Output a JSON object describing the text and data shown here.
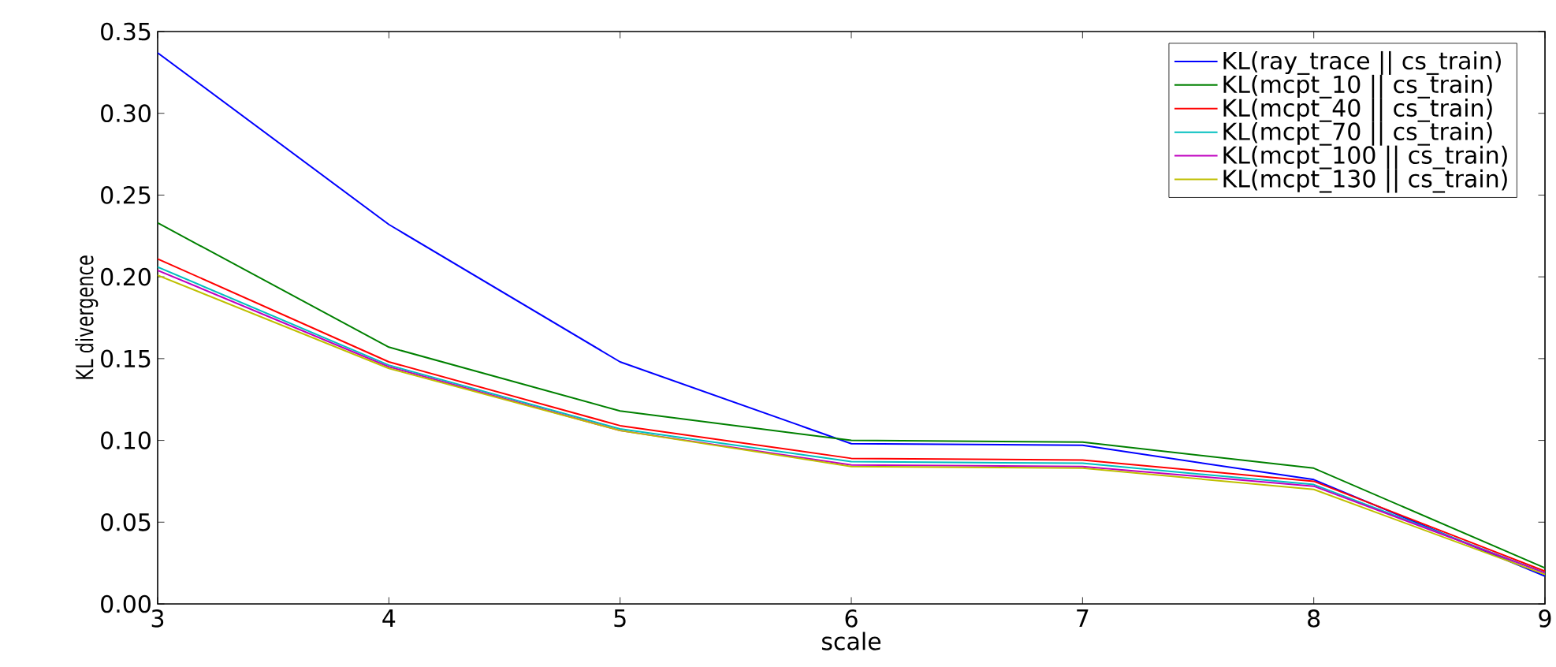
{
  "chart_data": {
    "type": "line",
    "xlabel": "scale",
    "ylabel": "KL divergence",
    "x": [
      3,
      4,
      5,
      6,
      7,
      8,
      9
    ],
    "xlim": [
      3,
      9
    ],
    "xticks": [
      3,
      4,
      5,
      6,
      7,
      8,
      9
    ],
    "ylim": [
      0,
      0.35
    ],
    "yticks": [
      {
        "value": 0,
        "label": "0.00"
      },
      {
        "value": 0.05,
        "label": "0.05"
      },
      {
        "value": 0.1,
        "label": "0.10"
      },
      {
        "value": 0.15,
        "label": "0.15"
      },
      {
        "value": 0.2,
        "label": "0.20"
      },
      {
        "value": 0.25,
        "label": "0.25"
      },
      {
        "value": 0.3,
        "label": "0.30"
      },
      {
        "value": 0.35,
        "label": "0.35"
      }
    ],
    "grid": false,
    "legend": "top right",
    "marker": "none",
    "line_style": "solid",
    "series": [
      {
        "name": "KL(ray_trace || cs_train)",
        "color": "#0000ff",
        "values": [
          0.337,
          0.232,
          0.148,
          0.098,
          0.097,
          0.076,
          0.017
        ]
      },
      {
        "name": "KL(mcpt_10 || cs_train)",
        "color": "#008000",
        "values": [
          0.233,
          0.157,
          0.118,
          0.1,
          0.099,
          0.083,
          0.022
        ]
      },
      {
        "name": "KL(mcpt_40 || cs_train)",
        "color": "#ff0000",
        "values": [
          0.211,
          0.148,
          0.109,
          0.089,
          0.088,
          0.075,
          0.02
        ]
      },
      {
        "name": "KL(mcpt_70 || cs_train)",
        "color": "#00bfbf",
        "values": [
          0.206,
          0.146,
          0.107,
          0.087,
          0.086,
          0.073,
          0.019
        ]
      },
      {
        "name": "KL(mcpt_100 || cs_train)",
        "color": "#bf00bf",
        "values": [
          0.204,
          0.145,
          0.106,
          0.085,
          0.084,
          0.072,
          0.019
        ]
      },
      {
        "name": "KL(mcpt_130 || cs_train)",
        "color": "#bfbf00",
        "values": [
          0.201,
          0.144,
          0.106,
          0.084,
          0.083,
          0.07,
          0.018
        ]
      }
    ]
  }
}
